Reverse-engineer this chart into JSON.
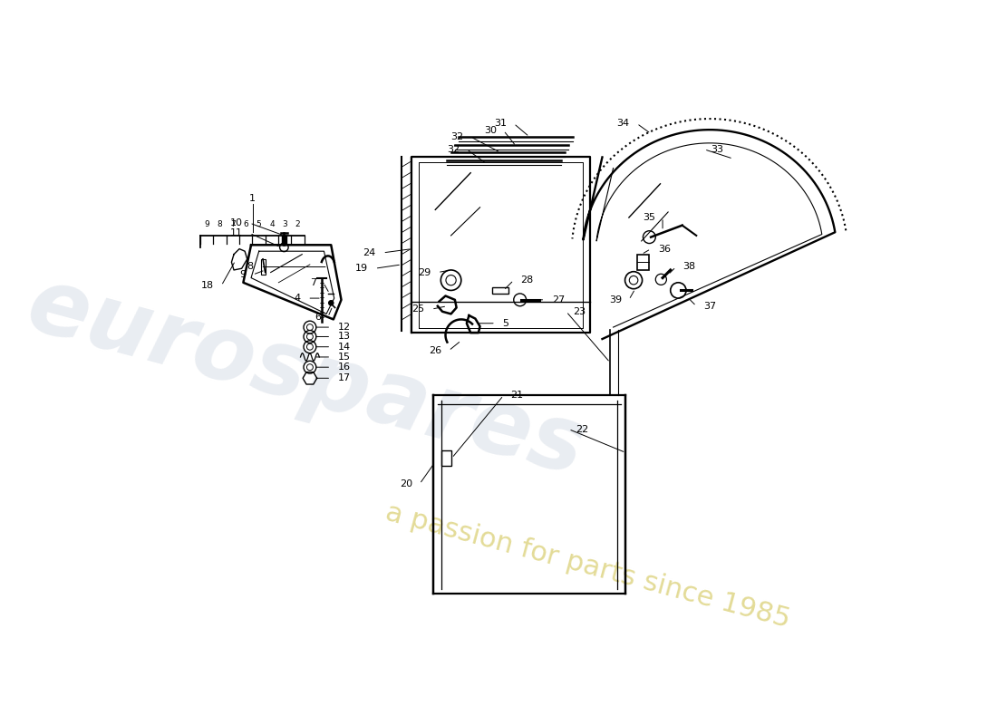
{
  "bg_color": "#ffffff",
  "line_color": "#000000",
  "watermark_color1": "#c0c8d8",
  "watermark_color2": "#d4c840",
  "parts_labels": [
    "1",
    "2",
    "3",
    "4",
    "5",
    "6",
    "7",
    "8",
    "9",
    "10",
    "11",
    "12",
    "13",
    "14",
    "15",
    "16",
    "17",
    "18",
    "19",
    "20",
    "21",
    "22",
    "23",
    "24",
    "25",
    "26",
    "27",
    "28",
    "29",
    "30",
    "31",
    "32",
    "33",
    "34",
    "35",
    "36",
    "37",
    "38",
    "39"
  ]
}
